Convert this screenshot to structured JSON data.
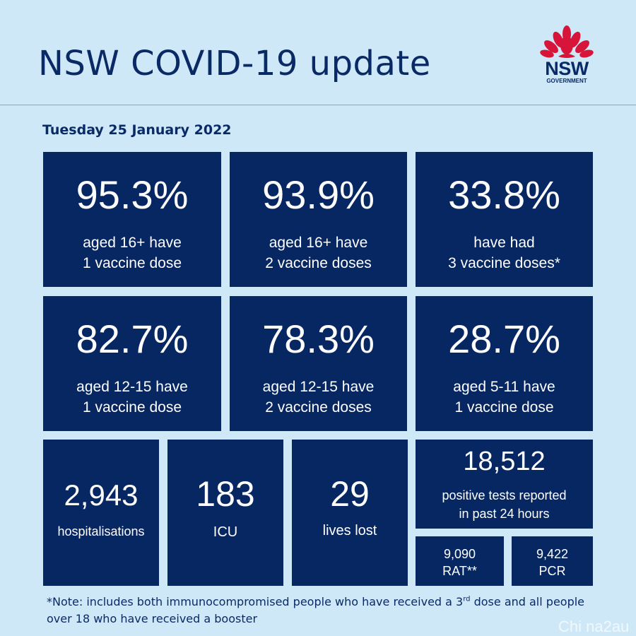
{
  "header": {
    "title": "NSW COVID-19 update",
    "logo_word": "NSW",
    "logo_sub": "GOVERNMENT"
  },
  "date": "Tuesday 25 January 2022",
  "vaccination_tiles": [
    {
      "value": "95.3%",
      "line1": "aged 16+ have",
      "line2": "1 vaccine dose"
    },
    {
      "value": "93.9%",
      "line1": "aged 16+ have",
      "line2": "2 vaccine doses"
    },
    {
      "value": "33.8%",
      "line1": "have had",
      "line2": "3 vaccine doses*"
    },
    {
      "value": "82.7%",
      "line1": "aged 12-15 have",
      "line2": "1 vaccine dose"
    },
    {
      "value": "78.3%",
      "line1": "aged 12-15 have",
      "line2": "2 vaccine doses"
    },
    {
      "value": "28.7%",
      "line1": "aged 5-11 have",
      "line2": "1 vaccine dose"
    }
  ],
  "stats": {
    "hospitalisations": {
      "value": "2,943",
      "label": "hospitalisations"
    },
    "icu": {
      "value": "183",
      "label": "ICU"
    },
    "lives_lost": {
      "value": "29",
      "label": "lives lost"
    },
    "positive_tests": {
      "value": "18,512",
      "line1": "positive tests reported",
      "line2": "in past 24 hours"
    },
    "rat": {
      "value": "9,090",
      "label": "RAT**"
    },
    "pcr": {
      "value": "9,422",
      "label": "PCR"
    }
  },
  "note": {
    "part1": "*Note: includes both immunocompromised people who have received a 3",
    "sup": "rd",
    "part2": " dose and all people over 18 who have received a booster"
  },
  "watermark": "Chi na2au",
  "colors": {
    "background": "#cfe8f7",
    "tile": "#072763",
    "title_text": "#0a2a66",
    "logo_red": "#d7153a"
  }
}
